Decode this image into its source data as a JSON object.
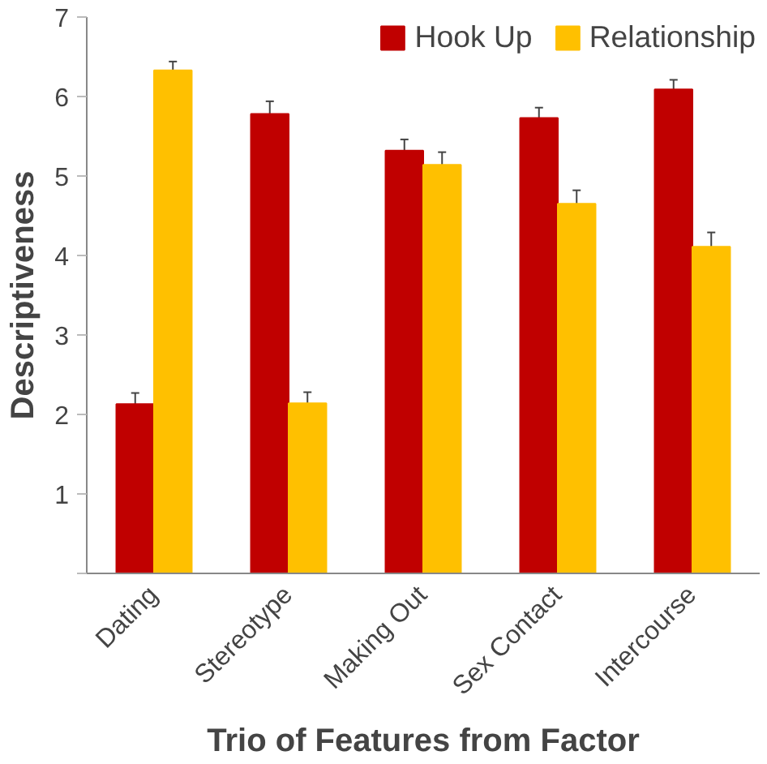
{
  "chart_data": {
    "type": "bar",
    "xlabel": "Trio of Features from Factor",
    "ylabel": "Descriptiveness",
    "categories": [
      "Dating",
      "Stereotype",
      "Making Out",
      "Sex Contact",
      "Intercourse"
    ],
    "series": [
      {
        "name": "Hook Up",
        "color": "#c00000",
        "values": [
          2.13,
          5.78,
          5.32,
          5.73,
          6.09
        ],
        "errors": [
          0.14,
          0.16,
          0.14,
          0.13,
          0.12
        ]
      },
      {
        "name": "Relationship",
        "color": "#ffc000",
        "values": [
          6.33,
          2.14,
          5.14,
          4.65,
          4.11
        ],
        "errors": [
          0.11,
          0.14,
          0.16,
          0.17,
          0.18
        ]
      }
    ],
    "ylim": [
      0,
      7
    ],
    "yticks": [
      {
        "value": 0,
        "label": null
      },
      1,
      2,
      3,
      4,
      5,
      6,
      7
    ],
    "grid": false,
    "legend": "top right"
  }
}
